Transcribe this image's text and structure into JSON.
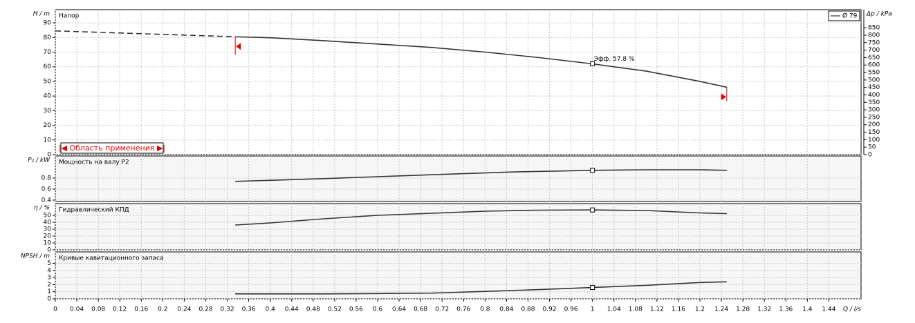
{
  "chart_data": [
    {
      "type": "line",
      "title": "Напор",
      "ylabel": "H / m",
      "y2label": "Δp / kPa",
      "xlim": [
        0,
        1.5
      ],
      "ylim": [
        0,
        99
      ],
      "yticks": [
        0,
        10,
        20,
        30,
        40,
        50,
        60,
        70,
        80,
        90
      ],
      "y2lim": [
        0,
        971
      ],
      "y2ticks": [
        0,
        50,
        100,
        150,
        200,
        250,
        300,
        350,
        400,
        450,
        500,
        550,
        600,
        650,
        700,
        750,
        800,
        850
      ],
      "grid": true,
      "legend": "top-right",
      "series": [
        {
          "name": "Ø 79",
          "color": "#333333",
          "x": [
            0.335,
            0.4,
            0.5,
            0.6,
            0.7,
            0.8,
            0.9,
            1.0,
            1.1,
            1.2,
            1.25
          ],
          "values": [
            80.5,
            79.8,
            77.8,
            75.5,
            73.2,
            70.0,
            66.3,
            62.0,
            57.0,
            50.0,
            46.0
          ]
        }
      ],
      "extrapolation": {
        "x": [
          0,
          0.335
        ],
        "values": [
          84.5,
          80.5
        ]
      },
      "marker": {
        "x": 1.0,
        "y": 62.0
      },
      "annotation": "Эфф. 57.8 %",
      "range": {
        "label": "|◀ Область применения ▶|",
        "x": [
          0.335,
          1.25
        ],
        "color": "#e00000"
      }
    },
    {
      "type": "line",
      "title": "Мощность на валу P2",
      "ylabel": "P₂ / kW",
      "xlim": [
        0,
        1.5
      ],
      "ylim": [
        0.375,
        1.2
      ],
      "yticks": [
        0.4,
        0.6,
        0.8
      ],
      "grid": true,
      "series": [
        {
          "color": "#333333",
          "x": [
            0.335,
            0.5,
            0.7,
            0.85,
            1.0,
            1.1,
            1.2,
            1.25
          ],
          "values": [
            0.74,
            0.79,
            0.86,
            0.91,
            0.94,
            0.95,
            0.95,
            0.94
          ]
        }
      ],
      "marker": {
        "x": 1.0,
        "y": 0.94
      }
    },
    {
      "type": "line",
      "title": "Гидравлический КПД",
      "ylabel": "η / %",
      "xlim": [
        0,
        1.5
      ],
      "ylim": [
        0,
        67
      ],
      "yticks": [
        0,
        10,
        20,
        30,
        40,
        50
      ],
      "grid": true,
      "series": [
        {
          "color": "#333333",
          "x": [
            0.335,
            0.4,
            0.5,
            0.6,
            0.7,
            0.8,
            0.9,
            1.0,
            1.1,
            1.2,
            1.25
          ],
          "values": [
            36,
            39,
            45,
            50,
            53,
            56,
            57.5,
            57.8,
            57,
            53.5,
            52.5
          ]
        }
      ],
      "marker": {
        "x": 1.0,
        "y": 57.8
      }
    },
    {
      "type": "line",
      "title": "Кривые кавитационного запаса",
      "ylabel": "NPSH / m",
      "xlabel": "Q / l/s",
      "xlim": [
        0,
        1.5
      ],
      "ylim": [
        0,
        6.6
      ],
      "yticks": [
        0,
        1,
        2,
        3,
        4,
        5
      ],
      "grid": true,
      "xticks": [
        0,
        0.04,
        0.08,
        0.12,
        0.16,
        0.2,
        0.24,
        0.28,
        0.32,
        0.36,
        0.4,
        0.44,
        0.48,
        0.52,
        0.56,
        0.6,
        0.64,
        0.68,
        0.72,
        0.76,
        0.8,
        0.84,
        0.88,
        0.92,
        0.96,
        1,
        1.04,
        1.08,
        1.12,
        1.16,
        1.2,
        1.24,
        1.28,
        1.32,
        1.36,
        1.4,
        1.44
      ],
      "series": [
        {
          "color": "#333333",
          "x": [
            0.335,
            0.5,
            0.6,
            0.7,
            0.8,
            0.9,
            1.0,
            1.1,
            1.2,
            1.25
          ],
          "values": [
            0.7,
            0.7,
            0.75,
            0.8,
            1.05,
            1.3,
            1.6,
            1.9,
            2.3,
            2.4
          ]
        }
      ],
      "marker": {
        "x": 1.0,
        "y": 1.6
      }
    }
  ]
}
